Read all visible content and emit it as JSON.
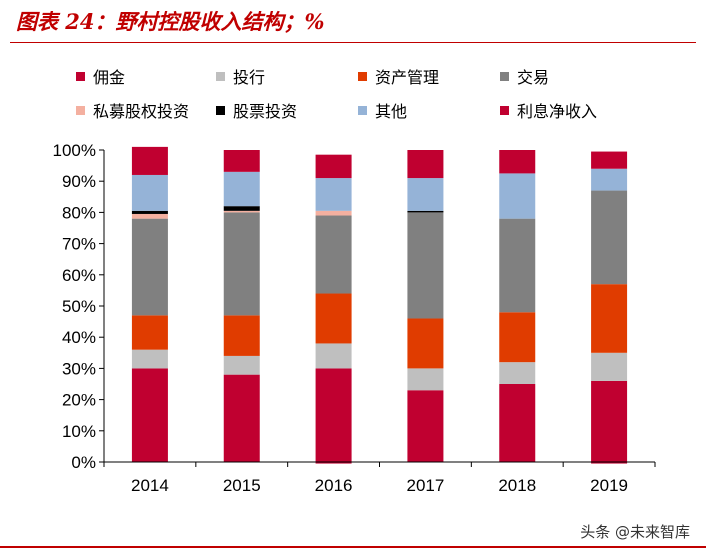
{
  "title": "图表 24：野村控股收入结构；%",
  "watermark": "头条 @未来智库",
  "chart_data": {
    "type": "bar",
    "stacked": true,
    "categories": [
      "2014",
      "2015",
      "2016",
      "2017",
      "2018",
      "2019"
    ],
    "ylim": [
      0,
      100
    ],
    "yticks": [
      "0%",
      "10%",
      "20%",
      "30%",
      "40%",
      "50%",
      "60%",
      "70%",
      "80%",
      "90%",
      "100%"
    ],
    "grid": false,
    "legend_position": "top",
    "series": [
      {
        "name": "利息净收入",
        "color": "#c00030",
        "values": [
          30,
          28,
          30,
          23,
          25,
          26
        ]
      },
      {
        "name": "投行",
        "color": "#bfbfbf",
        "values": [
          6,
          6,
          8,
          7,
          7,
          9
        ]
      },
      {
        "name": "资产管理",
        "color": "#e03c00",
        "values": [
          11,
          13,
          16,
          16,
          16,
          22
        ]
      },
      {
        "name": "交易",
        "color": "#808080",
        "values": [
          31,
          33,
          25,
          34,
          30,
          30
        ]
      },
      {
        "name": "私募股权投资",
        "color": "#f4b0a0",
        "values": [
          1.5,
          0.5,
          1.5,
          0,
          0,
          0
        ]
      },
      {
        "name": "股票投资",
        "color": "#000000",
        "values": [
          1,
          1.5,
          0,
          0.5,
          0,
          0
        ]
      },
      {
        "name": "其他",
        "color": "#95b3d7",
        "values": [
          11.5,
          11,
          10.5,
          10.5,
          14.5,
          7
        ]
      },
      {
        "name": "佣金",
        "color": "#c00030",
        "values": [
          9,
          7,
          7.5,
          9,
          7.5,
          5.5
        ]
      }
    ],
    "negative_values": [
      {
        "series": "利息净收入",
        "values": [
          0,
          0,
          -0.5,
          0,
          0,
          -0.5
        ]
      }
    ],
    "legend_order": [
      "佣金",
      "投行",
      "资产管理",
      "交易",
      "私募股权投资",
      "股票投资",
      "其他",
      "利息净收入"
    ]
  }
}
